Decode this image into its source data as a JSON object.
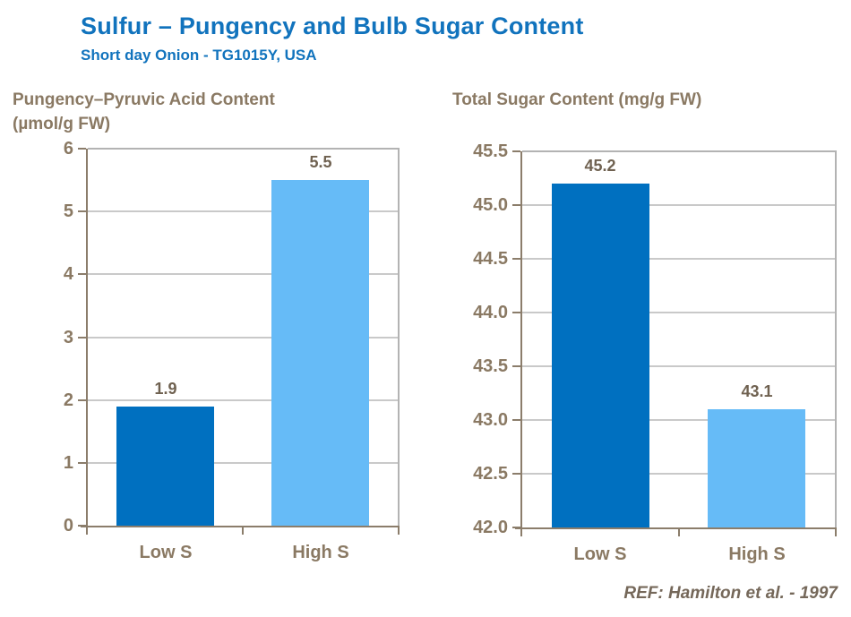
{
  "header": {
    "title": "Sulfur – Pungency and Bulb Sugar Content",
    "subtitle": "Short day Onion - TG1015Y, USA"
  },
  "footer": {
    "reference": "REF: Hamilton et al. - 1997"
  },
  "colors": {
    "title_blue": "#1173BD",
    "bar_dark_blue": "#0070C0",
    "bar_light_blue": "#66BBF7",
    "label_taupe": "#8A7963",
    "value_label": "#6F6150",
    "axis_line": "#8B7D6B",
    "plot_border_gray": "#B3B3B3",
    "gridline_gray": "#C9C9C9"
  },
  "chart_data": [
    {
      "type": "bar",
      "title_lines": [
        "Pungency–Pyruvic Acid Content",
        "(µmol/g FW)"
      ],
      "title": "Pungency–Pyruvic Acid Content (µmol/g FW)",
      "categories": [
        "Low S",
        "High S"
      ],
      "values": [
        1.9,
        5.5
      ],
      "value_labels": [
        "1.9",
        "5.5"
      ],
      "bar_colors": [
        "#0070C0",
        "#66BBF7"
      ],
      "ylim": [
        0,
        6
      ],
      "ytick_step": 1,
      "ytick_labels": [
        "0",
        "1",
        "2",
        "3",
        "4",
        "5",
        "6"
      ],
      "grid": true,
      "legend": "none"
    },
    {
      "type": "bar",
      "title_lines": [
        "Total Sugar Content (mg/g FW)"
      ],
      "title": "Total Sugar Content (mg/g FW)",
      "categories": [
        "Low S",
        "High S"
      ],
      "values": [
        45.2,
        43.1
      ],
      "value_labels": [
        "45.2",
        "43.1"
      ],
      "bar_colors": [
        "#0070C0",
        "#66BBF7"
      ],
      "ylim": [
        42.0,
        45.5
      ],
      "ytick_step": 0.5,
      "ytick_labels": [
        "42.0",
        "42.5",
        "43.0",
        "43.5",
        "44.0",
        "44.5",
        "45.0",
        "45.5"
      ],
      "grid": true,
      "legend": "none"
    }
  ]
}
